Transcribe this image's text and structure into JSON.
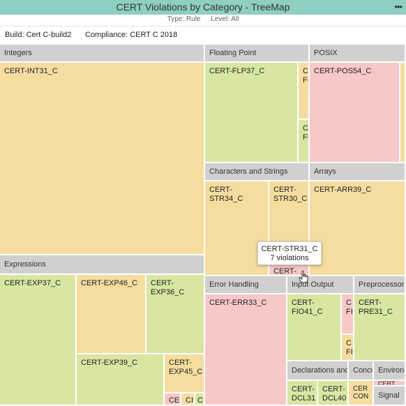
{
  "title": "CERT Violations by Category - TreeMap",
  "subtitle": {
    "type": "Type: Rule",
    "level": "Level: All"
  },
  "info": {
    "build": "Build: Cert C-build2",
    "compliance": "Compliance: CERT C 2018"
  },
  "colors": {
    "yellow": "#f5dda0",
    "green": "#d8e6a2",
    "pink": "#f8c8c8",
    "header": "#d0d0d0",
    "titlebar": "#8fcfc3"
  },
  "categories": {
    "integers": "Integers",
    "floating_point": "Floating Point",
    "posix": "POSIX",
    "characters_strings": "Characters and Strings",
    "arrays": "Arrays",
    "expressions": "Expressions",
    "error_handling": "Error Handling",
    "input_output": "Input Output",
    "preprocessor": "Preprocessor",
    "declarations": "Declarations and",
    "concurrency": "Concu",
    "environment": "Environ",
    "signals": "Signal"
  },
  "rules": {
    "int31": "CERT-INT31_C",
    "flp37": "CERT-FLP37_C",
    "flp_a": "C\nFI",
    "flp_b": "C\nFI",
    "pos54": "CERT-POS54_C",
    "str34": "CERT-\nSTR34_C",
    "str30": "CERT-\nSTR30_C",
    "arr39": "CERT-ARR39_C",
    "str31_partial": "CERT-",
    "exp37": "CERT-EXP37_C",
    "exp46": "CERT-EXP46_C",
    "exp36": "CERT-\nEXP36_C",
    "exp39": "CERT-EXP39_C",
    "exp45": "CERT-\nEXP45_C",
    "exp_a": "CE",
    "exp_b": "CI",
    "exp_c": "CI",
    "err33": "CERT-ERR33_C",
    "fio41": "CERT-\nFIO41_C",
    "fio_a": "C\nFI",
    "fio_b": "C\nFI",
    "pre31": "CERT-\nPRE31_C",
    "dcl31": "CERT-\nDCL31",
    "dcl40": "CERT-\nDCL40",
    "con_a": "CER\nCON",
    "env_a": "CERT",
    "con_b": "C"
  },
  "tooltip": {
    "rule": "CERT-STR31_C",
    "count": "7 violations"
  }
}
